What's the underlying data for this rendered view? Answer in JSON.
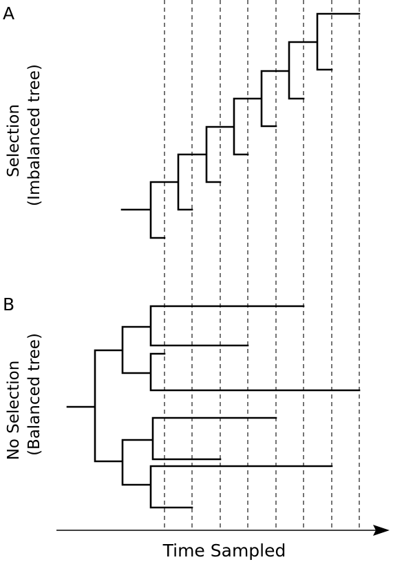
{
  "panel_a": {
    "letter": "A",
    "label_line1": "Selection",
    "label_line2": "(Imbalanced tree)"
  },
  "panel_b": {
    "letter": "B",
    "label_line1": "No Selection",
    "label_line2": "(Balanced tree)"
  },
  "axis": {
    "title": "Time Sampled"
  },
  "sampling_times": {
    "count": 8
  }
}
